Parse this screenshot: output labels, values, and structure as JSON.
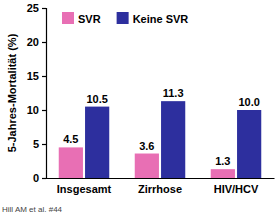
{
  "chart_data": {
    "type": "bar",
    "y_label": "5-Jahres-Mortalität (%)",
    "categories": [
      "Insgesamt",
      "Zirrhose",
      "HIV/HCV"
    ],
    "series": [
      {
        "name": "SVR",
        "color": "#e86fb4",
        "values": [
          4.5,
          3.6,
          1.3
        ],
        "value_labels": [
          "4.5",
          "3.6",
          "1.3"
        ]
      },
      {
        "name": "Keine SVR",
        "color": "#2d2f9e",
        "values": [
          10.5,
          11.3,
          10.0
        ],
        "value_labels": [
          "10.5",
          "11.3",
          "10.0"
        ]
      }
    ],
    "ylim": [
      0,
      25
    ],
    "yticks": [
      0,
      5,
      10,
      15,
      20,
      25
    ],
    "grid": false,
    "legend": "top",
    "data_labels": true,
    "annotation": "Hill AM et al. #44"
  }
}
